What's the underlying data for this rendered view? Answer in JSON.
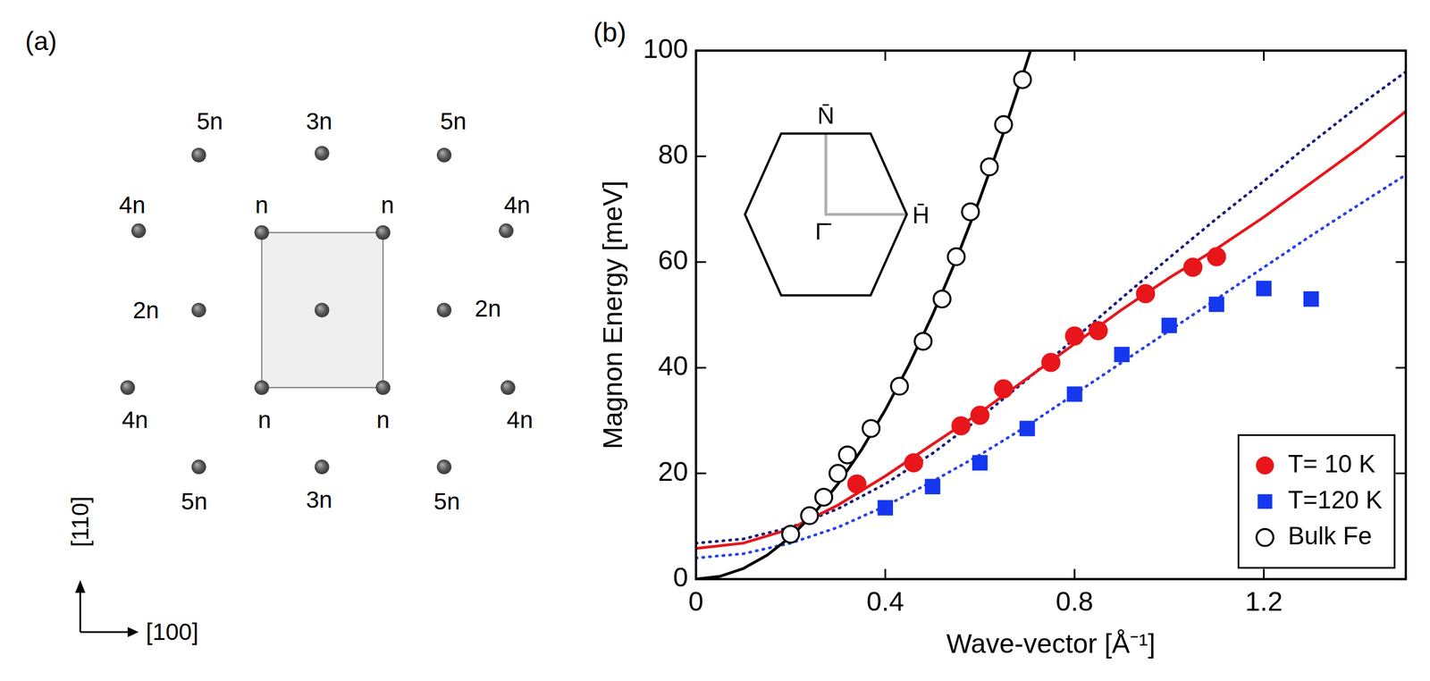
{
  "diagram": {
    "panel_label": "(a)",
    "atom_labels": [
      "n",
      "n",
      "n",
      "n",
      "2n",
      "2n",
      "3n",
      "3n",
      "4n",
      "4n",
      "4n",
      "4n",
      "5n",
      "5n",
      "5n",
      "5n"
    ],
    "directions": [
      "[110]",
      "[100]"
    ]
  },
  "chart_data": {
    "type": "scatter",
    "panel_label": "(b)",
    "x_label": "Wave-vector [Å⁻¹]",
    "y_label": "Magnon Energy [meV]",
    "xlim": [
      0,
      1.5
    ],
    "xticks": [
      0,
      0.4,
      0.8,
      1.2
    ],
    "ylim": [
      0,
      100
    ],
    "yticks": [
      0,
      20,
      40,
      60,
      80,
      100
    ],
    "grid": false,
    "legend": "lower right",
    "annotations": [
      "N̄",
      "H̄",
      "Γ̄"
    ],
    "series": [
      {
        "name": "T= 10 K",
        "type": "scatter",
        "marker": "circle",
        "color": "#e8161b",
        "x": [
          0.34,
          0.46,
          0.56,
          0.6,
          0.65,
          0.75,
          0.8,
          0.85,
          0.95,
          1.05,
          1.1
        ],
        "values": [
          18,
          22,
          29,
          31,
          36,
          41,
          46,
          47,
          54,
          59,
          61
        ]
      },
      {
        "name": "T=120 K",
        "type": "scatter",
        "marker": "square",
        "color": "#1537f0",
        "x": [
          0.4,
          0.5,
          0.6,
          0.7,
          0.8,
          0.9,
          1.0,
          1.1,
          1.2,
          1.3
        ],
        "values": [
          13.5,
          17.5,
          22,
          28.5,
          35,
          42.5,
          48,
          52,
          55,
          53
        ]
      },
      {
        "name": "Bulk Fe",
        "type": "scatter",
        "marker": "open circle",
        "color": "#000000",
        "x": [
          0.2,
          0.24,
          0.27,
          0.3,
          0.32,
          0.37,
          0.43,
          0.48,
          0.52,
          0.55,
          0.58,
          0.62,
          0.65,
          0.69
        ],
        "values": [
          8.5,
          12,
          15.5,
          20,
          23.5,
          28.5,
          36.5,
          45,
          53,
          61,
          69.5,
          78,
          86,
          94.5
        ]
      },
      {
        "type": "line",
        "line_style": "solid",
        "color": "#000000",
        "x": [
          0,
          0.05,
          0.1,
          0.15,
          0.2,
          0.25,
          0.3,
          0.35,
          0.4,
          0.45,
          0.5,
          0.55,
          0.6,
          0.65,
          0.7,
          0.707
        ],
        "values": [
          0,
          0.5,
          2,
          4.5,
          8,
          12.5,
          18,
          24.5,
          32,
          40.5,
          50,
          60.5,
          72,
          84.5,
          98,
          100
        ]
      },
      {
        "type": "line",
        "line_style": "solid",
        "color": "#e8161b",
        "x": [
          0,
          0.1,
          0.2,
          0.3,
          0.4,
          0.5,
          0.6,
          0.7,
          0.8,
          0.9,
          1.0,
          1.1,
          1.2,
          1.3,
          1.4,
          1.5
        ],
        "values": [
          5.8,
          6.8,
          9.5,
          14,
          19.5,
          25.5,
          31.5,
          38,
          44.5,
          51,
          57,
          62.5,
          68.5,
          75,
          81.5,
          88.5
        ]
      },
      {
        "type": "line",
        "line_style": "dotted",
        "color": "#1a1f7a",
        "x": [
          0,
          0.1,
          0.2,
          0.3,
          0.4,
          0.5,
          0.6,
          0.7,
          0.8,
          0.9,
          1.0,
          1.1,
          1.2,
          1.3,
          1.4,
          1.5
        ],
        "values": [
          6.8,
          7.6,
          9.8,
          13.3,
          18,
          23.8,
          30.5,
          37.8,
          45.5,
          53.2,
          60.8,
          68.2,
          75.3,
          82.5,
          89.5,
          96
        ]
      },
      {
        "type": "line",
        "line_style": "dotted",
        "color": "#2a43e6",
        "x": [
          0,
          0.1,
          0.2,
          0.3,
          0.4,
          0.5,
          0.6,
          0.7,
          0.8,
          0.9,
          1.0,
          1.1,
          1.2,
          1.3,
          1.4,
          1.5
        ],
        "values": [
          4,
          4.8,
          6.8,
          9.8,
          13.8,
          18.5,
          23.5,
          29,
          35,
          41,
          47,
          53,
          59,
          65,
          70.8,
          76.5
        ]
      }
    ]
  }
}
